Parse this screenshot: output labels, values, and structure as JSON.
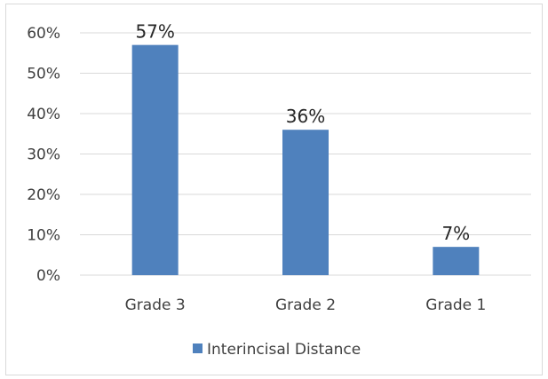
{
  "chart_data": {
    "type": "bar",
    "categories": [
      "Grade 3",
      "Grade 2",
      "Grade 1"
    ],
    "series": [
      {
        "name": "Interincisal Distance",
        "values": [
          57,
          36,
          7
        ],
        "data_labels": [
          "57%",
          "36%",
          "7%"
        ],
        "color": "#4f81bd"
      }
    ],
    "y_ticks": [
      "0%",
      "10%",
      "20%",
      "30%",
      "40%",
      "50%",
      "60%"
    ],
    "ylim": [
      0,
      60
    ],
    "y_unit": "%",
    "grid": true,
    "legend_position": "bottom",
    "title": "",
    "xlabel": "",
    "ylabel": ""
  },
  "colors": {
    "bar": "#4f81bd",
    "grid": "#d9d9d9",
    "axis_text": "#404040",
    "frame_border": "#d9d9d9"
  }
}
